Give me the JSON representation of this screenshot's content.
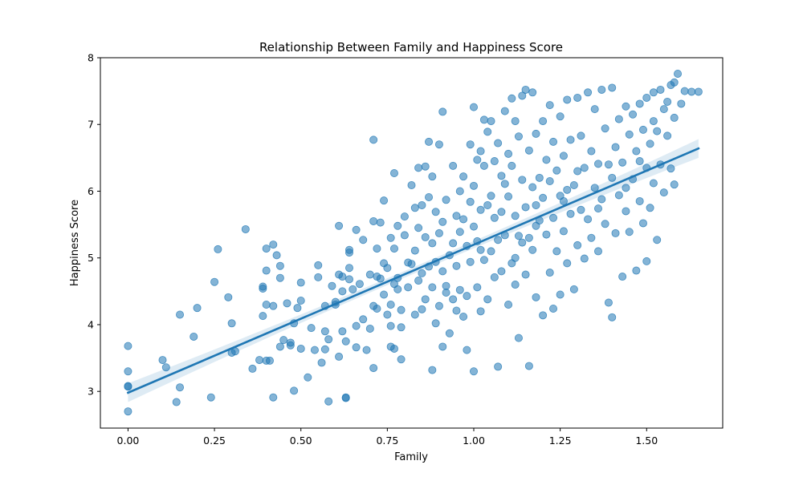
{
  "chart_data": {
    "type": "scatter",
    "title": "Relationship Between Family and Happiness Score",
    "xlabel": "Family",
    "ylabel": "Happiness Score",
    "xlim": [
      -0.08,
      1.72
    ],
    "ylim": [
      2.45,
      8.0
    ],
    "x_ticks": [
      0.0,
      0.25,
      0.5,
      0.75,
      1.0,
      1.25,
      1.5
    ],
    "x_tick_labels": [
      "0.00",
      "0.25",
      "0.50",
      "0.75",
      "1.00",
      "1.25",
      "1.50"
    ],
    "y_ticks": [
      3,
      4,
      5,
      6,
      7,
      8
    ],
    "y_tick_labels": [
      "3",
      "4",
      "5",
      "6",
      "7",
      "8"
    ],
    "grid": false,
    "colors": {
      "points": "#1f77b4",
      "line": "#1f77b4",
      "band": "#1f77b4"
    },
    "regression": {
      "x_start": 0.0,
      "y_start": 2.98,
      "x_end": 1.65,
      "y_end": 6.64,
      "ci_halfwidth_ends": 0.14,
      "ci_halfwidth_middle": 0.05
    },
    "points": [
      [
        0.0,
        3.68
      ],
      [
        0.0,
        3.3
      ],
      [
        0.0,
        3.08
      ],
      [
        0.0,
        3.07
      ],
      [
        0.0,
        2.7
      ],
      [
        0.1,
        3.47
      ],
      [
        0.11,
        3.36
      ],
      [
        0.14,
        2.84
      ],
      [
        0.15,
        4.15
      ],
      [
        0.15,
        3.06
      ],
      [
        0.19,
        3.82
      ],
      [
        0.2,
        4.25
      ],
      [
        0.24,
        2.91
      ],
      [
        0.25,
        4.64
      ],
      [
        0.26,
        5.13
      ],
      [
        0.29,
        4.41
      ],
      [
        0.3,
        4.02
      ],
      [
        0.3,
        3.58
      ],
      [
        0.31,
        3.6
      ],
      [
        0.34,
        5.43
      ],
      [
        0.36,
        3.34
      ],
      [
        0.38,
        3.47
      ],
      [
        0.39,
        4.13
      ],
      [
        0.39,
        4.54
      ],
      [
        0.39,
        4.57
      ],
      [
        0.4,
        4.3
      ],
      [
        0.4,
        5.14
      ],
      [
        0.4,
        4.81
      ],
      [
        0.4,
        3.46
      ],
      [
        0.41,
        3.46
      ],
      [
        0.42,
        4.28
      ],
      [
        0.42,
        5.2
      ],
      [
        0.42,
        2.91
      ],
      [
        0.43,
        5.04
      ],
      [
        0.44,
        4.88
      ],
      [
        0.44,
        4.7
      ],
      [
        0.44,
        3.67
      ],
      [
        0.45,
        3.77
      ],
      [
        0.46,
        4.32
      ],
      [
        0.47,
        3.69
      ],
      [
        0.47,
        3.73
      ],
      [
        0.48,
        4.02
      ],
      [
        0.48,
        3.01
      ],
      [
        0.49,
        4.25
      ],
      [
        0.5,
        4.63
      ],
      [
        0.5,
        4.36
      ],
      [
        0.5,
        3.64
      ],
      [
        0.52,
        3.21
      ],
      [
        0.53,
        3.95
      ],
      [
        0.54,
        3.62
      ],
      [
        0.55,
        4.89
      ],
      [
        0.55,
        4.71
      ],
      [
        0.56,
        3.43
      ],
      [
        0.57,
        4.28
      ],
      [
        0.57,
        3.9
      ],
      [
        0.58,
        3.78
      ],
      [
        0.58,
        2.85
      ],
      [
        0.59,
        4.58
      ],
      [
        0.6,
        4.34
      ],
      [
        0.6,
        4.3
      ],
      [
        0.61,
        3.52
      ],
      [
        0.61,
        4.75
      ],
      [
        0.61,
        5.48
      ],
      [
        0.62,
        4.72
      ],
      [
        0.62,
        4.5
      ],
      [
        0.62,
        3.9
      ],
      [
        0.63,
        3.75
      ],
      [
        0.63,
        2.91
      ],
      [
        0.63,
        2.9
      ],
      [
        0.64,
        4.68
      ],
      [
        0.64,
        5.12
      ],
      [
        0.64,
        5.08
      ],
      [
        0.64,
        4.85
      ],
      [
        0.65,
        4.53
      ],
      [
        0.66,
        3.98
      ],
      [
        0.66,
        3.66
      ],
      [
        0.66,
        5.42
      ],
      [
        0.67,
        4.61
      ],
      [
        0.68,
        5.27
      ],
      [
        0.69,
        3.62
      ],
      [
        0.7,
        4.75
      ],
      [
        0.7,
        3.94
      ],
      [
        0.71,
        6.77
      ],
      [
        0.71,
        5.55
      ],
      [
        0.71,
        4.28
      ],
      [
        0.71,
        3.35
      ],
      [
        0.72,
        5.14
      ],
      [
        0.72,
        4.72
      ],
      [
        0.72,
        4.24
      ],
      [
        0.73,
        5.53
      ],
      [
        0.73,
        4.69
      ],
      [
        0.74,
        5.86
      ],
      [
        0.74,
        4.92
      ],
      [
        0.75,
        4.15
      ],
      [
        0.75,
        4.85
      ],
      [
        0.76,
        5.3
      ],
      [
        0.76,
        4.3
      ],
      [
        0.76,
        3.98
      ],
      [
        0.76,
        3.67
      ],
      [
        0.77,
        6.27
      ],
      [
        0.77,
        5.14
      ],
      [
        0.77,
        4.61
      ],
      [
        0.77,
        3.64
      ],
      [
        0.78,
        5.48
      ],
      [
        0.78,
        4.7
      ],
      [
        0.78,
        4.53
      ],
      [
        0.79,
        4.22
      ],
      [
        0.79,
        3.96
      ],
      [
        0.79,
        3.48
      ],
      [
        0.8,
        5.62
      ],
      [
        0.8,
        5.34
      ],
      [
        0.81,
        4.93
      ],
      [
        0.81,
        4.56
      ],
      [
        0.82,
        6.09
      ],
      [
        0.82,
        4.91
      ],
      [
        0.83,
        5.75
      ],
      [
        0.83,
        5.11
      ],
      [
        0.83,
        4.15
      ],
      [
        0.84,
        6.35
      ],
      [
        0.84,
        5.45
      ],
      [
        0.85,
        5.79
      ],
      [
        0.85,
        4.77
      ],
      [
        0.85,
        4.23
      ],
      [
        0.86,
        6.37
      ],
      [
        0.86,
        5.31
      ],
      [
        0.86,
        4.38
      ],
      [
        0.87,
        6.74
      ],
      [
        0.87,
        5.91
      ],
      [
        0.87,
        4.87
      ],
      [
        0.88,
        6.22
      ],
      [
        0.88,
        5.22
      ],
      [
        0.88,
        4.56
      ],
      [
        0.88,
        3.32
      ],
      [
        0.89,
        5.69
      ],
      [
        0.89,
        4.94
      ],
      [
        0.89,
        4.02
      ],
      [
        0.9,
        6.7
      ],
      [
        0.9,
        5.37
      ],
      [
        0.9,
        4.28
      ],
      [
        0.91,
        7.19
      ],
      [
        0.91,
        5.54
      ],
      [
        0.91,
        4.8
      ],
      [
        0.91,
        3.67
      ],
      [
        0.92,
        5.87
      ],
      [
        0.92,
        4.58
      ],
      [
        0.93,
        5.04
      ],
      [
        0.93,
        3.87
      ],
      [
        0.94,
        6.38
      ],
      [
        0.94,
        5.22
      ],
      [
        0.94,
        4.38
      ],
      [
        0.95,
        5.63
      ],
      [
        0.95,
        4.88
      ],
      [
        0.95,
        4.21
      ],
      [
        0.96,
        6.0
      ],
      [
        0.96,
        5.39
      ],
      [
        0.96,
        4.52
      ],
      [
        0.97,
        6.22
      ],
      [
        0.97,
        5.58
      ],
      [
        0.97,
        4.12
      ],
      [
        0.98,
        5.18
      ],
      [
        0.98,
        4.43
      ],
      [
        0.98,
        3.62
      ],
      [
        0.99,
        6.7
      ],
      [
        0.99,
        5.84
      ],
      [
        0.99,
        4.94
      ],
      [
        1.0,
        7.26
      ],
      [
        1.0,
        6.08
      ],
      [
        1.0,
        5.47
      ],
      [
        1.0,
        3.3
      ],
      [
        1.01,
        6.47
      ],
      [
        1.01,
        5.25
      ],
      [
        1.01,
        4.56
      ],
      [
        1.02,
        6.6
      ],
      [
        1.02,
        5.72
      ],
      [
        1.02,
        4.2
      ],
      [
        1.03,
        7.07
      ],
      [
        1.03,
        6.38
      ],
      [
        1.03,
        4.97
      ],
      [
        1.04,
        6.89
      ],
      [
        1.04,
        5.79
      ],
      [
        1.04,
        4.38
      ],
      [
        1.05,
        7.05
      ],
      [
        1.05,
        5.93
      ],
      [
        1.05,
        5.1
      ],
      [
        1.06,
        6.45
      ],
      [
        1.06,
        5.6
      ],
      [
        1.06,
        4.71
      ],
      [
        1.07,
        6.72
      ],
      [
        1.07,
        5.27
      ],
      [
        1.07,
        3.37
      ],
      [
        1.08,
        6.23
      ],
      [
        1.08,
        5.69
      ],
      [
        1.08,
        4.8
      ],
      [
        1.09,
        7.2
      ],
      [
        1.09,
        6.11
      ],
      [
        1.09,
        5.34
      ],
      [
        1.1,
        6.56
      ],
      [
        1.1,
        5.92
      ],
      [
        1.1,
        4.3
      ],
      [
        1.11,
        7.39
      ],
      [
        1.11,
        6.38
      ],
      [
        1.11,
        4.92
      ],
      [
        1.12,
        7.05
      ],
      [
        1.12,
        5.63
      ],
      [
        1.12,
        4.6
      ],
      [
        1.13,
        6.82
      ],
      [
        1.13,
        5.33
      ],
      [
        1.13,
        3.8
      ],
      [
        1.14,
        7.43
      ],
      [
        1.14,
        6.17
      ],
      [
        1.14,
        5.23
      ],
      [
        1.15,
        7.52
      ],
      [
        1.15,
        5.76
      ],
      [
        1.15,
        4.75
      ],
      [
        1.16,
        6.61
      ],
      [
        1.16,
        5.3
      ],
      [
        1.16,
        3.38
      ],
      [
        1.17,
        7.48
      ],
      [
        1.17,
        6.06
      ],
      [
        1.17,
        5.12
      ],
      [
        1.18,
        6.86
      ],
      [
        1.18,
        5.79
      ],
      [
        1.18,
        4.41
      ],
      [
        1.19,
        6.2
      ],
      [
        1.19,
        5.56
      ],
      [
        1.2,
        7.05
      ],
      [
        1.2,
        5.9
      ],
      [
        1.2,
        4.14
      ],
      [
        1.21,
        6.47
      ],
      [
        1.21,
        5.35
      ],
      [
        1.22,
        7.29
      ],
      [
        1.22,
        6.15
      ],
      [
        1.22,
        4.78
      ],
      [
        1.23,
        6.74
      ],
      [
        1.23,
        5.6
      ],
      [
        1.23,
        4.24
      ],
      [
        1.24,
        6.31
      ],
      [
        1.24,
        5.1
      ],
      [
        1.25,
        7.12
      ],
      [
        1.25,
        5.93
      ],
      [
        1.25,
        4.45
      ],
      [
        1.26,
        6.53
      ],
      [
        1.26,
        5.4
      ],
      [
        1.27,
        7.37
      ],
      [
        1.27,
        6.02
      ],
      [
        1.27,
        4.92
      ],
      [
        1.28,
        6.77
      ],
      [
        1.28,
        5.66
      ],
      [
        1.29,
        6.09
      ],
      [
        1.29,
        4.53
      ],
      [
        1.3,
        7.4
      ],
      [
        1.3,
        6.3
      ],
      [
        1.3,
        5.19
      ],
      [
        1.31,
        6.83
      ],
      [
        1.31,
        5.72
      ],
      [
        1.32,
        6.35
      ],
      [
        1.32,
        4.99
      ],
      [
        1.33,
        7.48
      ],
      [
        1.33,
        5.58
      ],
      [
        1.34,
        6.6
      ],
      [
        1.34,
        5.3
      ],
      [
        1.35,
        7.23
      ],
      [
        1.35,
        6.05
      ],
      [
        1.36,
        6.41
      ],
      [
        1.36,
        5.1
      ],
      [
        1.37,
        7.52
      ],
      [
        1.37,
        5.88
      ],
      [
        1.38,
        6.94
      ],
      [
        1.38,
        5.51
      ],
      [
        1.39,
        6.4
      ],
      [
        1.39,
        4.33
      ],
      [
        1.4,
        7.55
      ],
      [
        1.4,
        6.2
      ],
      [
        1.4,
        4.11
      ],
      [
        1.41,
        6.66
      ],
      [
        1.41,
        5.37
      ],
      [
        1.42,
        7.08
      ],
      [
        1.42,
        5.94
      ],
      [
        1.43,
        6.43
      ],
      [
        1.43,
        4.72
      ],
      [
        1.44,
        7.27
      ],
      [
        1.44,
        5.7
      ],
      [
        1.45,
        6.85
      ],
      [
        1.45,
        5.39
      ],
      [
        1.46,
        7.15
      ],
      [
        1.46,
        6.18
      ],
      [
        1.47,
        6.6
      ],
      [
        1.47,
        4.81
      ],
      [
        1.48,
        7.31
      ],
      [
        1.48,
        5.85
      ],
      [
        1.49,
        6.92
      ],
      [
        1.49,
        5.52
      ],
      [
        1.5,
        7.4
      ],
      [
        1.5,
        6.35
      ],
      [
        1.5,
        4.95
      ],
      [
        1.51,
        6.71
      ],
      [
        1.51,
        5.75
      ],
      [
        1.52,
        7.48
      ],
      [
        1.52,
        6.12
      ],
      [
        1.53,
        6.9
      ],
      [
        1.53,
        5.27
      ],
      [
        1.54,
        7.52
      ],
      [
        1.54,
        6.4
      ],
      [
        1.55,
        7.23
      ],
      [
        1.55,
        5.98
      ],
      [
        1.56,
        6.83
      ],
      [
        1.57,
        7.59
      ],
      [
        1.57,
        6.34
      ],
      [
        1.58,
        7.1
      ],
      [
        1.58,
        6.1
      ],
      [
        1.59,
        7.76
      ],
      [
        1.6,
        7.31
      ],
      [
        1.61,
        7.5
      ],
      [
        1.63,
        7.49
      ],
      [
        1.65,
        7.49
      ],
      [
        1.58,
        7.63
      ],
      [
        1.56,
        7.34
      ],
      [
        1.52,
        7.05
      ],
      [
        1.48,
        6.45
      ],
      [
        1.44,
        6.05
      ],
      [
        1.36,
        5.74
      ],
      [
        1.26,
        5.85
      ],
      [
        1.18,
        5.48
      ],
      [
        1.12,
        5.0
      ],
      [
        1.02,
        5.12
      ],
      [
        0.92,
        4.48
      ],
      [
        0.84,
        4.66
      ],
      [
        0.74,
        4.45
      ],
      [
        0.68,
        4.08
      ],
      [
        0.57,
        3.63
      ]
    ]
  }
}
